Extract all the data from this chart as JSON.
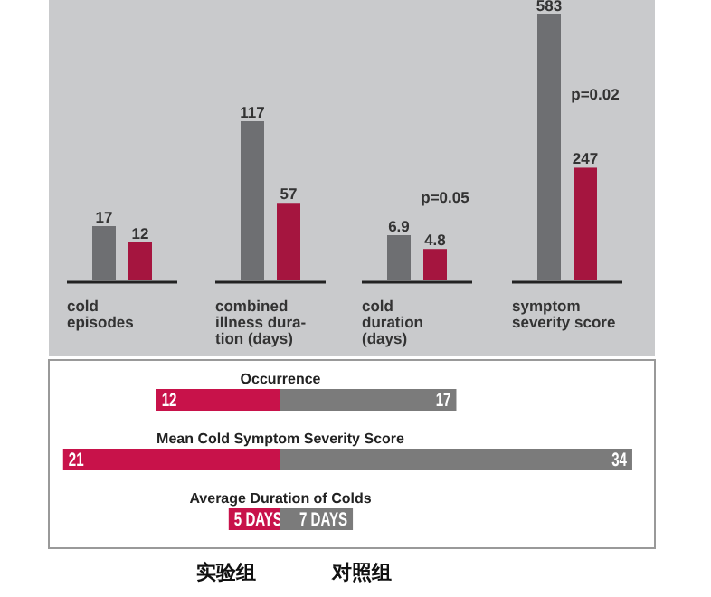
{
  "chart_data": [
    {
      "type": "bar",
      "categories": [
        "cold\nepisodes"
      ],
      "series": [
        {
          "color": "#6e6f72",
          "values": [
            17
          ]
        },
        {
          "color": "#a5153f",
          "values": [
            12
          ]
        }
      ],
      "data_labels": true
    },
    {
      "type": "bar",
      "categories": [
        "combined\nillness dura-\ntion (days)"
      ],
      "series": [
        {
          "color": "#6e6f72",
          "values": [
            117
          ]
        },
        {
          "color": "#a5153f",
          "values": [
            57
          ]
        }
      ],
      "data_labels": true
    },
    {
      "type": "bar",
      "categories": [
        "cold\nduration\n(days)"
      ],
      "series": [
        {
          "color": "#6e6f72",
          "values": [
            6.9
          ]
        },
        {
          "color": "#a5153f",
          "values": [
            4.8
          ]
        }
      ],
      "data_labels": true,
      "annotations": [
        "p=0.05"
      ]
    },
    {
      "type": "bar",
      "categories": [
        "symptom\nseverity score"
      ],
      "series": [
        {
          "color": "#6e6f72",
          "values": [
            583
          ]
        },
        {
          "color": "#a5153f",
          "values": [
            247
          ]
        }
      ],
      "data_labels": true,
      "annotations": [
        "p=0.02"
      ]
    },
    {
      "type": "bar",
      "orientation": "horizontal",
      "xlabel": "实验组",
      "categories": [
        "Occurrence",
        "Mean Cold Symptom Severity Score",
        "Average Duration of Colds"
      ],
      "xlim": [
        21,
        0
      ],
      "series": [
        {
          "color": "#c8124a",
          "values": [
            12,
            21,
            5
          ],
          "value_labels": [
            "12",
            "21",
            "5 DAYS"
          ]
        }
      ]
    },
    {
      "type": "bar",
      "orientation": "horizontal",
      "xlabel": "对照组",
      "xlim": [
        0,
        34
      ],
      "series": [
        {
          "color": "#7b7b7b",
          "values": [
            17,
            34,
            7
          ],
          "value_labels": [
            "17",
            "34",
            "7 DAYS"
          ]
        }
      ]
    }
  ]
}
